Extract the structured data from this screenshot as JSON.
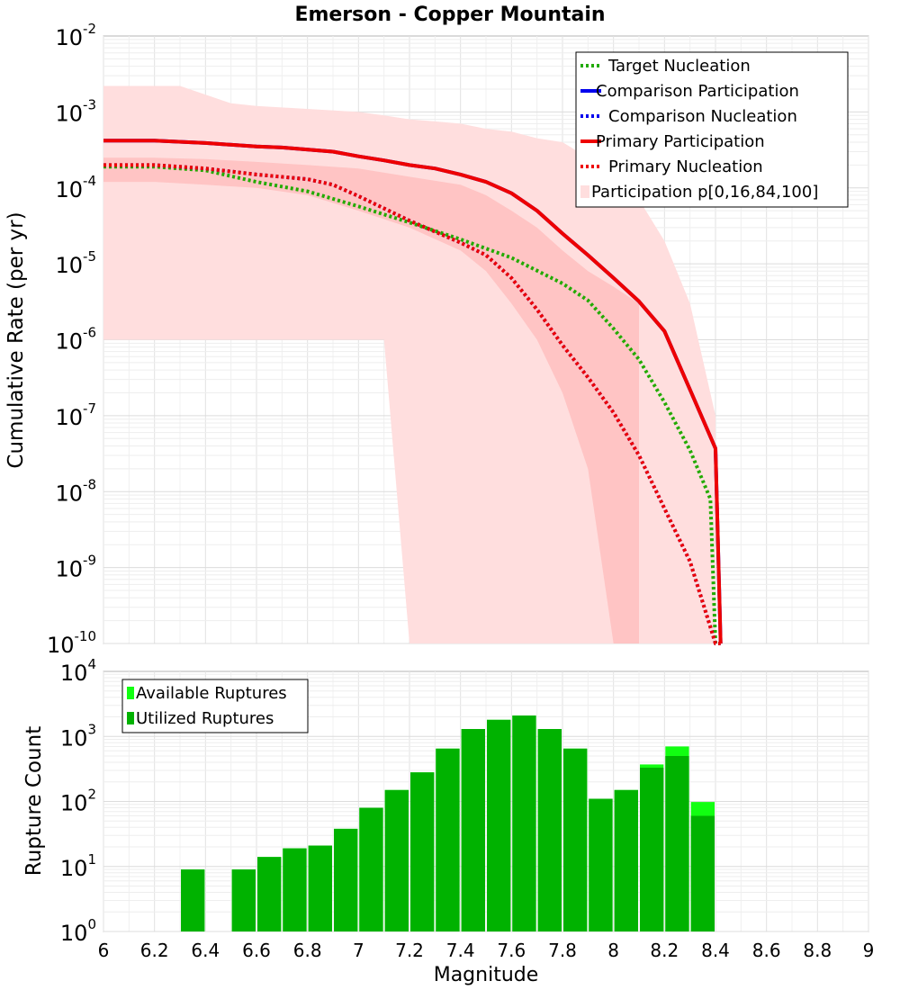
{
  "chart_data": [
    {
      "type": "line",
      "title": "Emerson - Copper Mountain",
      "xlabel": "",
      "ylabel": "Cumulative Rate (per yr)",
      "xlim": [
        6,
        9
      ],
      "ylim": [
        1e-10,
        0.01
      ],
      "yscale": "log",
      "grid": true,
      "legend_position": "top-right",
      "y_tick_labels": [
        {
          "base": "10",
          "exp": "-10",
          "value": 1e-10
        },
        {
          "base": "10",
          "exp": "-9",
          "value": 1e-09
        },
        {
          "base": "10",
          "exp": "-8",
          "value": 1e-08
        },
        {
          "base": "10",
          "exp": "-7",
          "value": 1e-07
        },
        {
          "base": "10",
          "exp": "-6",
          "value": 1e-06
        },
        {
          "base": "10",
          "exp": "-5",
          "value": 1e-05
        },
        {
          "base": "10",
          "exp": "-4",
          "value": 0.0001
        },
        {
          "base": "10",
          "exp": "-3",
          "value": 0.001
        },
        {
          "base": "10",
          "exp": "-2",
          "value": 0.01
        }
      ],
      "series": [
        {
          "name": "Target Nucleation",
          "color": "#22aa00",
          "style": "dotted",
          "x": [
            6.0,
            6.2,
            6.4,
            6.6,
            6.8,
            7.0,
            7.2,
            7.4,
            7.6,
            7.8,
            7.9,
            8.0,
            8.1,
            8.2,
            8.3,
            8.38,
            8.4
          ],
          "y": [
            0.00019,
            0.00019,
            0.00017,
            0.00012,
            9e-05,
            5.7e-05,
            3.5e-05,
            2.1e-05,
            1.2e-05,
            5.5e-06,
            3.3e-06,
            1.4e-06,
            5.5e-07,
            1.5e-07,
            3.5e-08,
            8e-09,
            1e-10
          ]
        },
        {
          "name": "Comparison Participation",
          "color": "#0000ee",
          "style": "solid",
          "x": [
            6.0,
            6.2,
            6.4,
            6.6,
            6.7,
            6.9,
            7.0,
            7.1,
            7.2,
            7.3,
            7.4,
            7.5,
            7.6,
            7.7,
            7.8,
            7.9,
            8.0,
            8.1,
            8.2,
            8.3,
            8.4,
            8.42
          ],
          "y": [
            0.00042,
            0.00042,
            0.00039,
            0.00035,
            0.00034,
            0.0003,
            0.00026,
            0.00023,
            0.0002,
            0.00018,
            0.00015,
            0.00012,
            8.5e-05,
            5e-05,
            2.5e-05,
            1.3e-05,
            6.5e-06,
            3.2e-06,
            1.3e-06,
            2.2e-07,
            3.7e-08,
            1e-10
          ]
        },
        {
          "name": "Comparison Nucleation",
          "color": "#0000ee",
          "style": "dotted",
          "x": [
            6.0,
            6.2,
            6.4,
            6.6,
            6.8,
            6.9,
            7.0,
            7.2,
            7.4,
            7.5,
            7.6,
            7.7,
            7.8,
            7.9,
            8.0,
            8.1,
            8.2,
            8.3,
            8.4,
            8.42
          ],
          "y": [
            0.0002,
            0.0002,
            0.00018,
            0.00015,
            0.00013,
            0.00011,
            7.8e-05,
            3.7e-05,
            1.9e-05,
            1.3e-05,
            6.5e-06,
            2.5e-06,
            8.5e-07,
            3.2e-07,
            1.1e-07,
            3e-08,
            6e-09,
            1.2e-09,
            1e-10,
            1e-10
          ]
        },
        {
          "name": "Primary Participation",
          "color": "#ee0000",
          "style": "solid",
          "x": [
            6.0,
            6.2,
            6.4,
            6.6,
            6.7,
            6.9,
            7.0,
            7.1,
            7.2,
            7.3,
            7.4,
            7.5,
            7.6,
            7.7,
            7.8,
            7.9,
            8.0,
            8.1,
            8.2,
            8.3,
            8.4,
            8.42
          ],
          "y": [
            0.00042,
            0.00042,
            0.00039,
            0.00035,
            0.00034,
            0.0003,
            0.00026,
            0.00023,
            0.0002,
            0.00018,
            0.00015,
            0.00012,
            8.5e-05,
            5e-05,
            2.5e-05,
            1.3e-05,
            6.5e-06,
            3.2e-06,
            1.3e-06,
            2.2e-07,
            3.7e-08,
            1e-10
          ]
        },
        {
          "name": "Primary Nucleation",
          "color": "#ee0000",
          "style": "dotted",
          "x": [
            6.0,
            6.2,
            6.4,
            6.6,
            6.8,
            6.9,
            7.0,
            7.2,
            7.4,
            7.5,
            7.6,
            7.7,
            7.8,
            7.9,
            8.0,
            8.1,
            8.2,
            8.3,
            8.4,
            8.42
          ],
          "y": [
            0.0002,
            0.0002,
            0.00018,
            0.00015,
            0.00013,
            0.00011,
            7.8e-05,
            3.7e-05,
            1.9e-05,
            1.3e-05,
            6.5e-06,
            2.5e-06,
            8.5e-07,
            3.2e-07,
            1.1e-07,
            3e-08,
            6e-09,
            1.2e-09,
            1e-10,
            1e-10
          ]
        }
      ],
      "bands": [
        {
          "name": "Participation p[0,16,84,100]",
          "color": "#ffdede",
          "x": [
            6.0,
            6.3,
            6.5,
            6.6,
            7.0,
            7.1,
            7.2,
            7.3,
            7.4,
            7.5,
            7.6,
            7.7,
            7.8,
            7.9,
            8.0,
            8.1,
            8.2,
            8.3,
            8.4
          ],
          "upper": [
            0.0022,
            0.0022,
            0.0013,
            0.0012,
            0.001,
            0.0009,
            0.0008,
            0.00075,
            0.0007,
            0.0006,
            0.00055,
            0.00045,
            0.0004,
            0.00025,
            0.00015,
            7e-05,
            2e-05,
            3e-06,
            1e-07
          ],
          "lower": [
            1e-06,
            1e-06,
            1e-06,
            1e-06,
            1e-06,
            1e-06,
            1e-10,
            1e-10,
            1e-10,
            1e-10,
            1e-10,
            1e-10,
            1e-10,
            1e-10,
            1e-10,
            1e-10,
            1e-10,
            1e-10,
            1e-10
          ]
        },
        {
          "name": "",
          "color": "#ffc4c4",
          "x": [
            6.0,
            6.2,
            6.4,
            6.6,
            6.8,
            7.0,
            7.2,
            7.4,
            7.5,
            7.6,
            7.7,
            7.8,
            7.9,
            8.0,
            8.1
          ],
          "upper": [
            0.00025,
            0.00025,
            0.00024,
            0.00022,
            0.0002,
            0.00018,
            0.00014,
            0.00011,
            8e-05,
            5e-05,
            3e-05,
            1.5e-05,
            8e-06,
            5e-06,
            3e-06
          ],
          "lower": [
            0.00012,
            0.00012,
            0.00011,
            0.0001,
            8e-05,
            5e-05,
            3e-05,
            1.5e-05,
            8e-06,
            3e-06,
            1e-06,
            2e-07,
            2e-08,
            1e-10,
            1e-10
          ]
        }
      ],
      "legend": [
        {
          "label": "Target Nucleation",
          "color": "#22aa00",
          "style": "dotted"
        },
        {
          "label": "Comparison Participation",
          "color": "#0000ee",
          "style": "solid"
        },
        {
          "label": "Comparison Nucleation",
          "color": "#0000ee",
          "style": "dotted"
        },
        {
          "label": "Primary Participation",
          "color": "#ee0000",
          "style": "solid"
        },
        {
          "label": "Primary Nucleation",
          "color": "#ee0000",
          "style": "dotted"
        },
        {
          "label": "Participation p[0,16,84,100]",
          "color": "#ffdede",
          "style": "fill"
        }
      ]
    },
    {
      "type": "bar",
      "title": "",
      "xlabel": "Magnitude",
      "ylabel": "Rupture Count",
      "xlim": [
        6,
        9
      ],
      "ylim": [
        1,
        10000
      ],
      "yscale": "log",
      "grid": true,
      "legend_position": "top-left",
      "bar_width": 0.1,
      "x_tick_labels": [
        "6",
        "6.2",
        "6.4",
        "6.6",
        "6.8",
        "7",
        "7.2",
        "7.4",
        "7.6",
        "7.8",
        "8",
        "8.2",
        "8.4",
        "8.6",
        "8.8",
        "9"
      ],
      "y_tick_labels": [
        {
          "base": "10",
          "exp": "0",
          "value": 1
        },
        {
          "base": "10",
          "exp": "1",
          "value": 10
        },
        {
          "base": "10",
          "exp": "2",
          "value": 100
        },
        {
          "base": "10",
          "exp": "3",
          "value": 1000
        },
        {
          "base": "10",
          "exp": "4",
          "value": 10000
        }
      ],
      "x": [
        6.35,
        6.55,
        6.65,
        6.75,
        6.85,
        6.95,
        7.05,
        7.15,
        7.25,
        7.35,
        7.45,
        7.55,
        7.65,
        7.75,
        7.85,
        7.95,
        8.05,
        8.15,
        8.25,
        8.35
      ],
      "series": [
        {
          "name": "Available Ruptures",
          "color": "#11ff11",
          "values": [
            9,
            9,
            14,
            19,
            21,
            38,
            80,
            150,
            280,
            650,
            1300,
            1800,
            2100,
            1300,
            650,
            110,
            150,
            370,
            700,
            98
          ]
        },
        {
          "name": "Utilized Ruptures",
          "color": "#00b200",
          "values": [
            9,
            9,
            14,
            19,
            21,
            38,
            80,
            150,
            280,
            650,
            1300,
            1800,
            2100,
            1300,
            650,
            110,
            150,
            330,
            500,
            60
          ]
        }
      ],
      "legend": [
        {
          "label": "Available Ruptures",
          "color": "#11ff11"
        },
        {
          "label": "Utilized Ruptures",
          "color": "#00b200"
        }
      ]
    }
  ]
}
